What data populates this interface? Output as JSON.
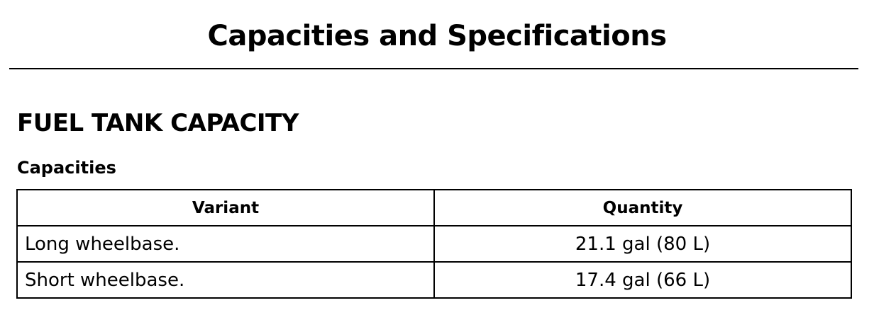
{
  "header": {
    "title": "Capacities and Specifications"
  },
  "section": {
    "title": "FUEL TANK CAPACITY"
  },
  "table": {
    "title": "Capacities",
    "columns": [
      "Variant",
      "Quantity"
    ],
    "rows": [
      [
        "Long wheelbase.",
        "21.1 gal (80 L)"
      ],
      [
        "Short wheelbase.",
        "17.4 gal (66 L)"
      ]
    ]
  }
}
